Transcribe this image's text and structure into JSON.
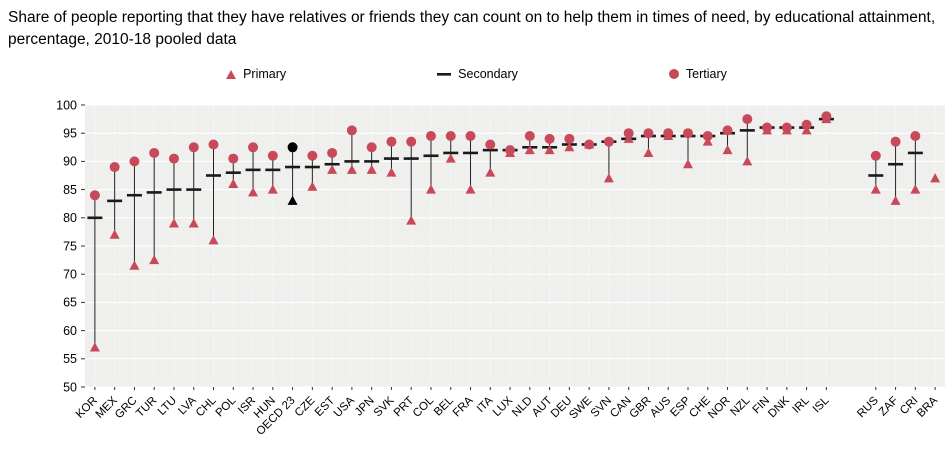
{
  "title": "Share of people reporting that they have relatives or friends they can count on to help them in times of need, by educational attainment, percentage, 2010-18 pooled data",
  "legend": [
    {
      "label": "Primary",
      "marker": "triangle"
    },
    {
      "label": "Secondary",
      "marker": "dash"
    },
    {
      "label": "Tertiary",
      "marker": "circle"
    }
  ],
  "colors": {
    "marker_red": "#c7495a",
    "secondary_dash": "#1a1a1a",
    "highlight": "#000000",
    "plot_bg": "#efefed",
    "grid": "#ffffff",
    "connector": "#222222",
    "axis": "#333333"
  },
  "chart_data": {
    "type": "scatter",
    "variant": "lollipop-range",
    "title": "Share of people reporting that they have relatives or friends they can count on to help them in times of need, by educational attainment, percentage, 2010-18 pooled data",
    "ylim": [
      50,
      100
    ],
    "yticks": [
      50,
      55,
      60,
      65,
      70,
      75,
      80,
      85,
      90,
      95,
      100
    ],
    "grid": true,
    "legend_position": "top",
    "highlight_category": "OECD 23",
    "gap_after_index": 37,
    "gap_slots": 1.5,
    "categories": [
      "KOR",
      "MEX",
      "GRC",
      "TUR",
      "LTU",
      "LVA",
      "CHL",
      "POL",
      "ISR",
      "HUN",
      "OECD 23",
      "CZE",
      "EST",
      "USA",
      "JPN",
      "SVK",
      "PRT",
      "COL",
      "BEL",
      "FRA",
      "ITA",
      "LUX",
      "NLD",
      "AUT",
      "DEU",
      "SWE",
      "SVN",
      "CAN",
      "GBR",
      "AUS",
      "ESP",
      "CHE",
      "NOR",
      "NZL",
      "FIN",
      "DNK",
      "IRL",
      "ISL",
      "RUS",
      "ZAF",
      "CRI",
      "BRA"
    ],
    "series": [
      {
        "name": "Primary",
        "marker": "triangle",
        "values": [
          57,
          77,
          71.5,
          72.5,
          79,
          79,
          76,
          86,
          84.5,
          85,
          83,
          85.5,
          88.5,
          88.5,
          88.5,
          88,
          79.5,
          85,
          90.5,
          85,
          88,
          91.5,
          92,
          92,
          92.5,
          93,
          87,
          94,
          91.5,
          94.5,
          89.5,
          93.5,
          92,
          90,
          95.5,
          95.5,
          95.5,
          97.5,
          85,
          83,
          85,
          87
        ]
      },
      {
        "name": "Secondary",
        "marker": "dash",
        "values": [
          80,
          83,
          84,
          84.5,
          85,
          85,
          87.5,
          88,
          88.5,
          88.5,
          89,
          89,
          89.5,
          90,
          90,
          90.5,
          90.5,
          91,
          91.5,
          91.5,
          92,
          92,
          92.5,
          92.5,
          93,
          93,
          93.5,
          94,
          94.5,
          94.5,
          94.5,
          94.5,
          95,
          95.5,
          96,
          96,
          96,
          97.5,
          87.5,
          89.5,
          91.5,
          null
        ]
      },
      {
        "name": "Tertiary",
        "marker": "circle",
        "values": [
          84,
          89,
          90,
          91.5,
          90.5,
          92.5,
          93,
          90.5,
          92.5,
          91,
          92.5,
          91,
          91.5,
          95.5,
          92.5,
          93.5,
          93.5,
          94.5,
          94.5,
          94.5,
          93,
          92,
          94.5,
          94,
          94,
          93,
          93.5,
          95,
          95,
          95,
          95,
          94.5,
          95.5,
          97.5,
          96,
          96,
          96.5,
          98,
          91,
          93.5,
          94.5,
          null
        ]
      }
    ]
  }
}
